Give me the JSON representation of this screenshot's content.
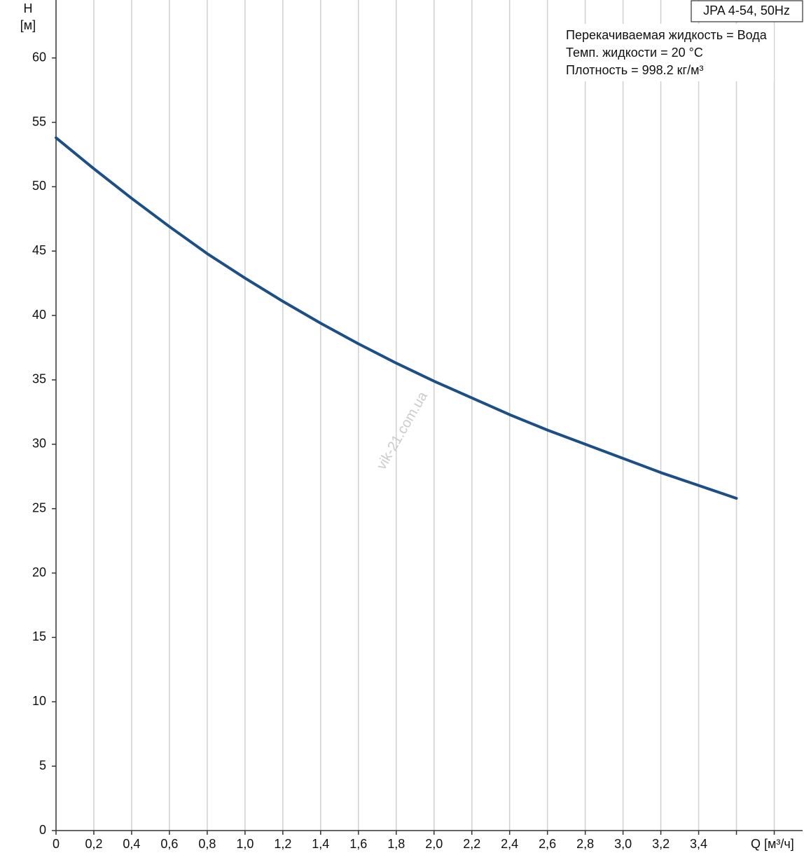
{
  "chart_data": {
    "type": "line",
    "title": "JPA 4-54, 50Hz",
    "annotations": [
      "Перекачиваемая жидкость = Вода",
      "Темп. жидкости = 20 °C",
      "Плотность = 998.2 кг/м³"
    ],
    "watermark": "vik-21.com.ua",
    "y_label": "H",
    "y_unit": "[м]",
    "x_label": "Q [м³/ч]",
    "x": [
      0,
      0.2,
      0.4,
      0.6,
      0.8,
      1.0,
      1.2,
      1.4,
      1.6,
      1.8,
      2.0,
      2.2,
      2.4,
      2.6,
      2.8,
      3.0,
      3.2,
      3.4,
      3.6
    ],
    "series": [
      {
        "name": "JPA 4-54",
        "color": "#1c4f86",
        "values": [
          53.8,
          51.4,
          49.1,
          46.9,
          44.8,
          42.9,
          41.1,
          39.4,
          37.8,
          36.3,
          34.9,
          33.6,
          32.3,
          31.1,
          30.0,
          28.9,
          27.8,
          26.8,
          25.8
        ]
      }
    ],
    "xlim": [
      0,
      3.95
    ],
    "ylim": [
      0,
      64.5
    ],
    "xticks": [
      0,
      {
        "value": 0.2,
        "label": "0,2"
      },
      {
        "value": 0.4,
        "label": "0,4"
      },
      {
        "value": 0.6,
        "label": "0,6"
      },
      {
        "value": 0.8,
        "label": "0,8"
      },
      {
        "value": 1.0,
        "label": "1,0"
      },
      {
        "value": 1.2,
        "label": "1,2"
      },
      {
        "value": 1.4,
        "label": "1,4"
      },
      {
        "value": 1.6,
        "label": "1,6"
      },
      {
        "value": 1.8,
        "label": "1,8"
      },
      {
        "value": 2.0,
        "label": "2,0"
      },
      {
        "value": 2.2,
        "label": "2,2"
      },
      {
        "value": 2.4,
        "label": "2,4"
      },
      {
        "value": 2.6,
        "label": "2,6"
      },
      {
        "value": 2.8,
        "label": "2,8"
      },
      {
        "value": 3.0,
        "label": "3,0"
      },
      {
        "value": 3.2,
        "label": "3,2"
      },
      {
        "value": 3.4,
        "label": "3,4"
      },
      {
        "value": 3.6,
        "label": null
      },
      {
        "value": 3.8,
        "label": null
      }
    ],
    "yticks": [
      0,
      5,
      10,
      15,
      20,
      25,
      30,
      35,
      40,
      45,
      50,
      55,
      60
    ],
    "grid": "x"
  }
}
